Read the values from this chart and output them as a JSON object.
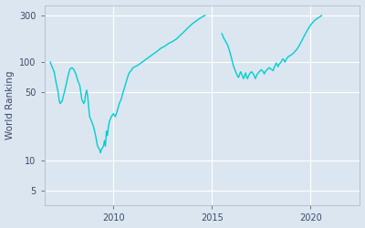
{
  "ylabel": "World Ranking",
  "line_color": "#00CED1",
  "bg_color": "#dce6f0",
  "fig_bg_color": "#dce6f0",
  "xticks": [
    2010,
    2015,
    2020
  ],
  "yticks": [
    5,
    10,
    50,
    100,
    300
  ],
  "ytick_labels": [
    "5",
    "10",
    "50",
    "100",
    "300"
  ],
  "xlim": [
    2006.5,
    2022.5
  ],
  "ylim": [
    3.5,
    380
  ],
  "seg1": [
    [
      2006.8,
      100
    ],
    [
      2007.0,
      80
    ],
    [
      2007.1,
      62
    ],
    [
      2007.2,
      50
    ],
    [
      2007.25,
      42
    ],
    [
      2007.3,
      38
    ],
    [
      2007.4,
      40
    ],
    [
      2007.5,
      48
    ],
    [
      2007.6,
      58
    ],
    [
      2007.7,
      72
    ],
    [
      2007.8,
      85
    ],
    [
      2007.9,
      88
    ],
    [
      2008.0,
      84
    ],
    [
      2008.1,
      76
    ],
    [
      2008.15,
      70
    ],
    [
      2008.2,
      65
    ],
    [
      2008.3,
      58
    ],
    [
      2008.35,
      50
    ],
    [
      2008.4,
      42
    ],
    [
      2008.5,
      38
    ],
    [
      2008.55,
      40
    ],
    [
      2008.6,
      48
    ],
    [
      2008.65,
      52
    ],
    [
      2008.7,
      45
    ],
    [
      2008.75,
      35
    ],
    [
      2008.8,
      28
    ],
    [
      2008.9,
      25
    ],
    [
      2009.0,
      22
    ],
    [
      2009.1,
      18
    ],
    [
      2009.2,
      14
    ],
    [
      2009.3,
      13
    ],
    [
      2009.35,
      12
    ],
    [
      2009.4,
      13
    ],
    [
      2009.5,
      14
    ],
    [
      2009.55,
      16
    ],
    [
      2009.6,
      14
    ],
    [
      2009.65,
      20
    ],
    [
      2009.7,
      18
    ],
    [
      2009.75,
      22
    ],
    [
      2009.8,
      25
    ],
    [
      2009.9,
      28
    ],
    [
      2010.0,
      30
    ],
    [
      2010.1,
      28
    ],
    [
      2010.2,
      32
    ],
    [
      2010.3,
      38
    ],
    [
      2010.4,
      42
    ],
    [
      2010.5,
      50
    ],
    [
      2010.6,
      58
    ],
    [
      2010.7,
      68
    ],
    [
      2010.8,
      78
    ],
    [
      2010.9,
      82
    ],
    [
      2011.0,
      88
    ],
    [
      2011.2,
      92
    ],
    [
      2011.4,
      98
    ],
    [
      2011.6,
      105
    ],
    [
      2011.8,
      112
    ],
    [
      2012.0,
      120
    ],
    [
      2012.2,
      128
    ],
    [
      2012.4,
      138
    ],
    [
      2012.6,
      145
    ],
    [
      2012.8,
      155
    ],
    [
      2013.0,
      162
    ],
    [
      2013.2,
      172
    ],
    [
      2013.4,
      188
    ],
    [
      2013.6,
      205
    ],
    [
      2013.8,
      225
    ],
    [
      2014.0,
      245
    ],
    [
      2014.2,
      262
    ],
    [
      2014.4,
      280
    ],
    [
      2014.55,
      292
    ],
    [
      2014.65,
      298
    ]
  ],
  "seg2": [
    [
      2015.5,
      195
    ],
    [
      2015.55,
      185
    ],
    [
      2015.6,
      175
    ],
    [
      2015.65,
      168
    ],
    [
      2015.7,
      162
    ],
    [
      2015.75,
      155
    ],
    [
      2015.8,
      148
    ],
    [
      2015.85,
      138
    ],
    [
      2015.9,
      128
    ],
    [
      2015.95,
      118
    ],
    [
      2016.0,
      108
    ],
    [
      2016.05,
      98
    ],
    [
      2016.1,
      90
    ],
    [
      2016.15,
      85
    ],
    [
      2016.2,
      80
    ],
    [
      2016.25,
      76
    ],
    [
      2016.3,
      72
    ],
    [
      2016.35,
      70
    ],
    [
      2016.4,
      75
    ],
    [
      2016.45,
      80
    ],
    [
      2016.5,
      76
    ],
    [
      2016.55,
      72
    ],
    [
      2016.6,
      68
    ],
    [
      2016.65,
      72
    ],
    [
      2016.7,
      78
    ],
    [
      2016.75,
      72
    ],
    [
      2016.8,
      68
    ],
    [
      2016.85,
      72
    ],
    [
      2016.9,
      76
    ],
    [
      2017.0,
      80
    ],
    [
      2017.1,
      76
    ],
    [
      2017.15,
      72
    ],
    [
      2017.2,
      68
    ],
    [
      2017.25,
      72
    ],
    [
      2017.3,
      76
    ],
    [
      2017.4,
      80
    ],
    [
      2017.5,
      84
    ],
    [
      2017.6,
      80
    ],
    [
      2017.65,
      76
    ],
    [
      2017.7,
      80
    ],
    [
      2017.8,
      84
    ],
    [
      2017.9,
      88
    ],
    [
      2018.0,
      85
    ],
    [
      2018.1,
      82
    ],
    [
      2018.15,
      88
    ],
    [
      2018.2,
      92
    ],
    [
      2018.25,
      98
    ],
    [
      2018.3,
      95
    ],
    [
      2018.35,
      90
    ],
    [
      2018.4,
      95
    ],
    [
      2018.5,
      100
    ],
    [
      2018.55,
      105
    ],
    [
      2018.6,
      108
    ],
    [
      2018.65,
      105
    ],
    [
      2018.7,
      100
    ],
    [
      2018.75,
      105
    ],
    [
      2018.8,
      110
    ],
    [
      2018.9,
      115
    ],
    [
      2019.0,
      118
    ],
    [
      2019.1,
      122
    ],
    [
      2019.2,
      128
    ],
    [
      2019.3,
      135
    ],
    [
      2019.4,
      145
    ],
    [
      2019.5,
      158
    ],
    [
      2019.6,
      172
    ],
    [
      2019.7,
      188
    ],
    [
      2019.8,
      205
    ],
    [
      2019.9,
      222
    ],
    [
      2020.0,
      238
    ],
    [
      2020.1,
      252
    ],
    [
      2020.2,
      265
    ],
    [
      2020.3,
      275
    ],
    [
      2020.4,
      283
    ],
    [
      2020.5,
      292
    ],
    [
      2020.55,
      298
    ]
  ]
}
